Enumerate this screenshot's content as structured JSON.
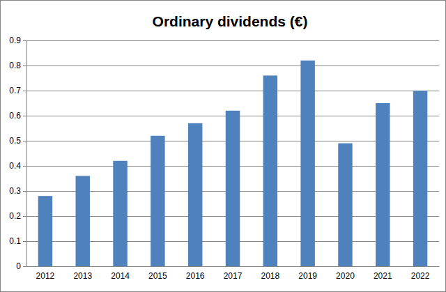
{
  "chart_data": {
    "type": "bar",
    "title": "Ordinary dividends (€)",
    "categories": [
      "2012",
      "2013",
      "2014",
      "2015",
      "2016",
      "2017",
      "2018",
      "2019",
      "2020",
      "2021",
      "2022"
    ],
    "values": [
      0.28,
      0.36,
      0.42,
      0.52,
      0.57,
      0.62,
      0.76,
      0.82,
      0.49,
      0.65,
      0.7
    ],
    "color": "#4f81bd",
    "ylim": [
      0,
      0.9
    ],
    "yticks": [
      0,
      0.1,
      0.2,
      0.3,
      0.4,
      0.5,
      0.6,
      0.7,
      0.8,
      0.9
    ],
    "grid": true
  }
}
